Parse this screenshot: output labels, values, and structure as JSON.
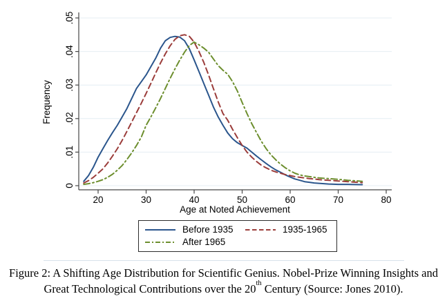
{
  "caption": {
    "line1": "Figure 2:  A Shifting Age Distribution for Scientific Genius.  Nobel-Prize Winning Insights and",
    "line2_before_sup": "Great Technological Contributions over the 20",
    "line2_sup": "th",
    "line2_after_sup": " Century (Source: Jones 2010)."
  },
  "colors": {
    "axis": "#464646",
    "gridline": "#e4edf3",
    "legend_border": "#2b2b2b",
    "divider": "#d7e2eb",
    "series_blue": "#2a558c",
    "series_maroon": "#9b3c3a",
    "series_green": "#6c8e2d"
  },
  "chart_data": {
    "type": "line",
    "title": "",
    "xlabel": "Age at Noted Achievement",
    "ylabel": "Frequency",
    "xlim": [
      16,
      81
    ],
    "ylim": [
      0,
      0.05
    ],
    "x_ticks": [
      20,
      30,
      40,
      50,
      60,
      70,
      80
    ],
    "y_ticks": [
      0,
      0.01,
      0.02,
      0.03,
      0.04,
      0.05
    ],
    "y_tick_labels": [
      "0",
      ".01",
      ".02",
      ".03",
      ".04",
      ".05"
    ],
    "grid": true,
    "legend_position": "below-chart boxed, 2 columns",
    "series": [
      {
        "name": "Before 1935",
        "color": "#2a558c",
        "style": "solid",
        "points": [
          [
            17,
            0.0013
          ],
          [
            18,
            0.003
          ],
          [
            19,
            0.0055
          ],
          [
            20,
            0.0085
          ],
          [
            21,
            0.011
          ],
          [
            22,
            0.0135
          ],
          [
            23,
            0.0158
          ],
          [
            24,
            0.018
          ],
          [
            25,
            0.0205
          ],
          [
            26,
            0.023
          ],
          [
            27,
            0.026
          ],
          [
            28,
            0.029
          ],
          [
            29,
            0.031
          ],
          [
            30,
            0.033
          ],
          [
            31,
            0.0355
          ],
          [
            32,
            0.038
          ],
          [
            33,
            0.041
          ],
          [
            34,
            0.0432
          ],
          [
            35,
            0.0442
          ],
          [
            36,
            0.0445
          ],
          [
            37,
            0.0443
          ],
          [
            38,
            0.0432
          ],
          [
            39,
            0.0408
          ],
          [
            40,
            0.0375
          ],
          [
            41,
            0.034
          ],
          [
            42,
            0.0305
          ],
          [
            43,
            0.027
          ],
          [
            44,
            0.0235
          ],
          [
            45,
            0.0205
          ],
          [
            46,
            0.018
          ],
          [
            47,
            0.0157
          ],
          [
            48,
            0.014
          ],
          [
            49,
            0.0128
          ],
          [
            50,
            0.012
          ],
          [
            51,
            0.0112
          ],
          [
            52,
            0.01
          ],
          [
            53,
            0.0088
          ],
          [
            54,
            0.0077
          ],
          [
            55,
            0.0066
          ],
          [
            56,
            0.0056
          ],
          [
            57,
            0.0047
          ],
          [
            58,
            0.004
          ],
          [
            59,
            0.0032
          ],
          [
            60,
            0.0026
          ],
          [
            61,
            0.002
          ],
          [
            62,
            0.0016
          ],
          [
            63,
            0.0012
          ],
          [
            64,
            0.001
          ],
          [
            65,
            0.0008
          ],
          [
            66,
            0.0007
          ],
          [
            68,
            0.0005
          ],
          [
            70,
            0.0004
          ],
          [
            72,
            0.0004
          ],
          [
            75,
            0.0003
          ]
        ]
      },
      {
        "name": "1935-1965",
        "color": "#9b3c3a",
        "style": "dashed",
        "points": [
          [
            17,
            0.0008
          ],
          [
            18,
            0.0015
          ],
          [
            19,
            0.0025
          ],
          [
            20,
            0.0037
          ],
          [
            21,
            0.005
          ],
          [
            22,
            0.0068
          ],
          [
            23,
            0.0088
          ],
          [
            24,
            0.011
          ],
          [
            25,
            0.0135
          ],
          [
            26,
            0.0162
          ],
          [
            27,
            0.019
          ],
          [
            28,
            0.0218
          ],
          [
            29,
            0.0246
          ],
          [
            30,
            0.0275
          ],
          [
            31,
            0.0305
          ],
          [
            32,
            0.0336
          ],
          [
            33,
            0.0366
          ],
          [
            34,
            0.0393
          ],
          [
            35,
            0.0417
          ],
          [
            36,
            0.0436
          ],
          [
            37,
            0.0447
          ],
          [
            38,
            0.045
          ],
          [
            39,
            0.0445
          ],
          [
            40,
            0.0428
          ],
          [
            41,
            0.04
          ],
          [
            42,
            0.0368
          ],
          [
            43,
            0.033
          ],
          [
            44,
            0.029
          ],
          [
            45,
            0.025
          ],
          [
            46,
            0.0215
          ],
          [
            47,
            0.0195
          ],
          [
            48,
            0.0168
          ],
          [
            49,
            0.0143
          ],
          [
            50,
            0.012
          ],
          [
            51,
            0.01
          ],
          [
            52,
            0.0085
          ],
          [
            53,
            0.0072
          ],
          [
            54,
            0.0061
          ],
          [
            55,
            0.0053
          ],
          [
            56,
            0.0046
          ],
          [
            57,
            0.0041
          ],
          [
            58,
            0.0037
          ],
          [
            59,
            0.0033
          ],
          [
            60,
            0.003
          ],
          [
            61,
            0.0027
          ],
          [
            62,
            0.0025
          ],
          [
            63,
            0.0023
          ],
          [
            64,
            0.0021
          ],
          [
            65,
            0.002
          ],
          [
            66,
            0.0018
          ],
          [
            68,
            0.0016
          ],
          [
            70,
            0.0014
          ],
          [
            72,
            0.0012
          ],
          [
            75,
            0.0009
          ]
        ]
      },
      {
        "name": "After 1965",
        "color": "#6c8e2d",
        "style": "dashdot",
        "points": [
          [
            17,
            0.0004
          ],
          [
            18,
            0.0006
          ],
          [
            19,
            0.0009
          ],
          [
            20,
            0.0013
          ],
          [
            21,
            0.0018
          ],
          [
            22,
            0.0025
          ],
          [
            23,
            0.0034
          ],
          [
            24,
            0.0046
          ],
          [
            25,
            0.006
          ],
          [
            26,
            0.0078
          ],
          [
            27,
            0.0098
          ],
          [
            28,
            0.012
          ],
          [
            29,
            0.0145
          ],
          [
            30,
            0.018
          ],
          [
            31,
            0.0205
          ],
          [
            32,
            0.0232
          ],
          [
            33,
            0.026
          ],
          [
            34,
            0.029
          ],
          [
            35,
            0.032
          ],
          [
            36,
            0.0348
          ],
          [
            37,
            0.0374
          ],
          [
            38,
            0.0398
          ],
          [
            39,
            0.0418
          ],
          [
            40,
            0.0428
          ],
          [
            41,
            0.042
          ],
          [
            42,
            0.041
          ],
          [
            43,
            0.0398
          ],
          [
            44,
            0.0378
          ],
          [
            45,
            0.0358
          ],
          [
            46,
            0.0344
          ],
          [
            47,
            0.0332
          ],
          [
            48,
            0.031
          ],
          [
            49,
            0.0282
          ],
          [
            50,
            0.0248
          ],
          [
            51,
            0.0215
          ],
          [
            52,
            0.0185
          ],
          [
            53,
            0.0158
          ],
          [
            54,
            0.0132
          ],
          [
            55,
            0.011
          ],
          [
            56,
            0.0092
          ],
          [
            57,
            0.0077
          ],
          [
            58,
            0.0064
          ],
          [
            59,
            0.0053
          ],
          [
            60,
            0.0044
          ],
          [
            61,
            0.0037
          ],
          [
            62,
            0.0032
          ],
          [
            63,
            0.0029
          ],
          [
            64,
            0.0027
          ],
          [
            65,
            0.0025
          ],
          [
            66,
            0.0023
          ],
          [
            68,
            0.0021
          ],
          [
            70,
            0.0019
          ],
          [
            72,
            0.0016
          ],
          [
            75,
            0.0013
          ]
        ]
      }
    ]
  }
}
